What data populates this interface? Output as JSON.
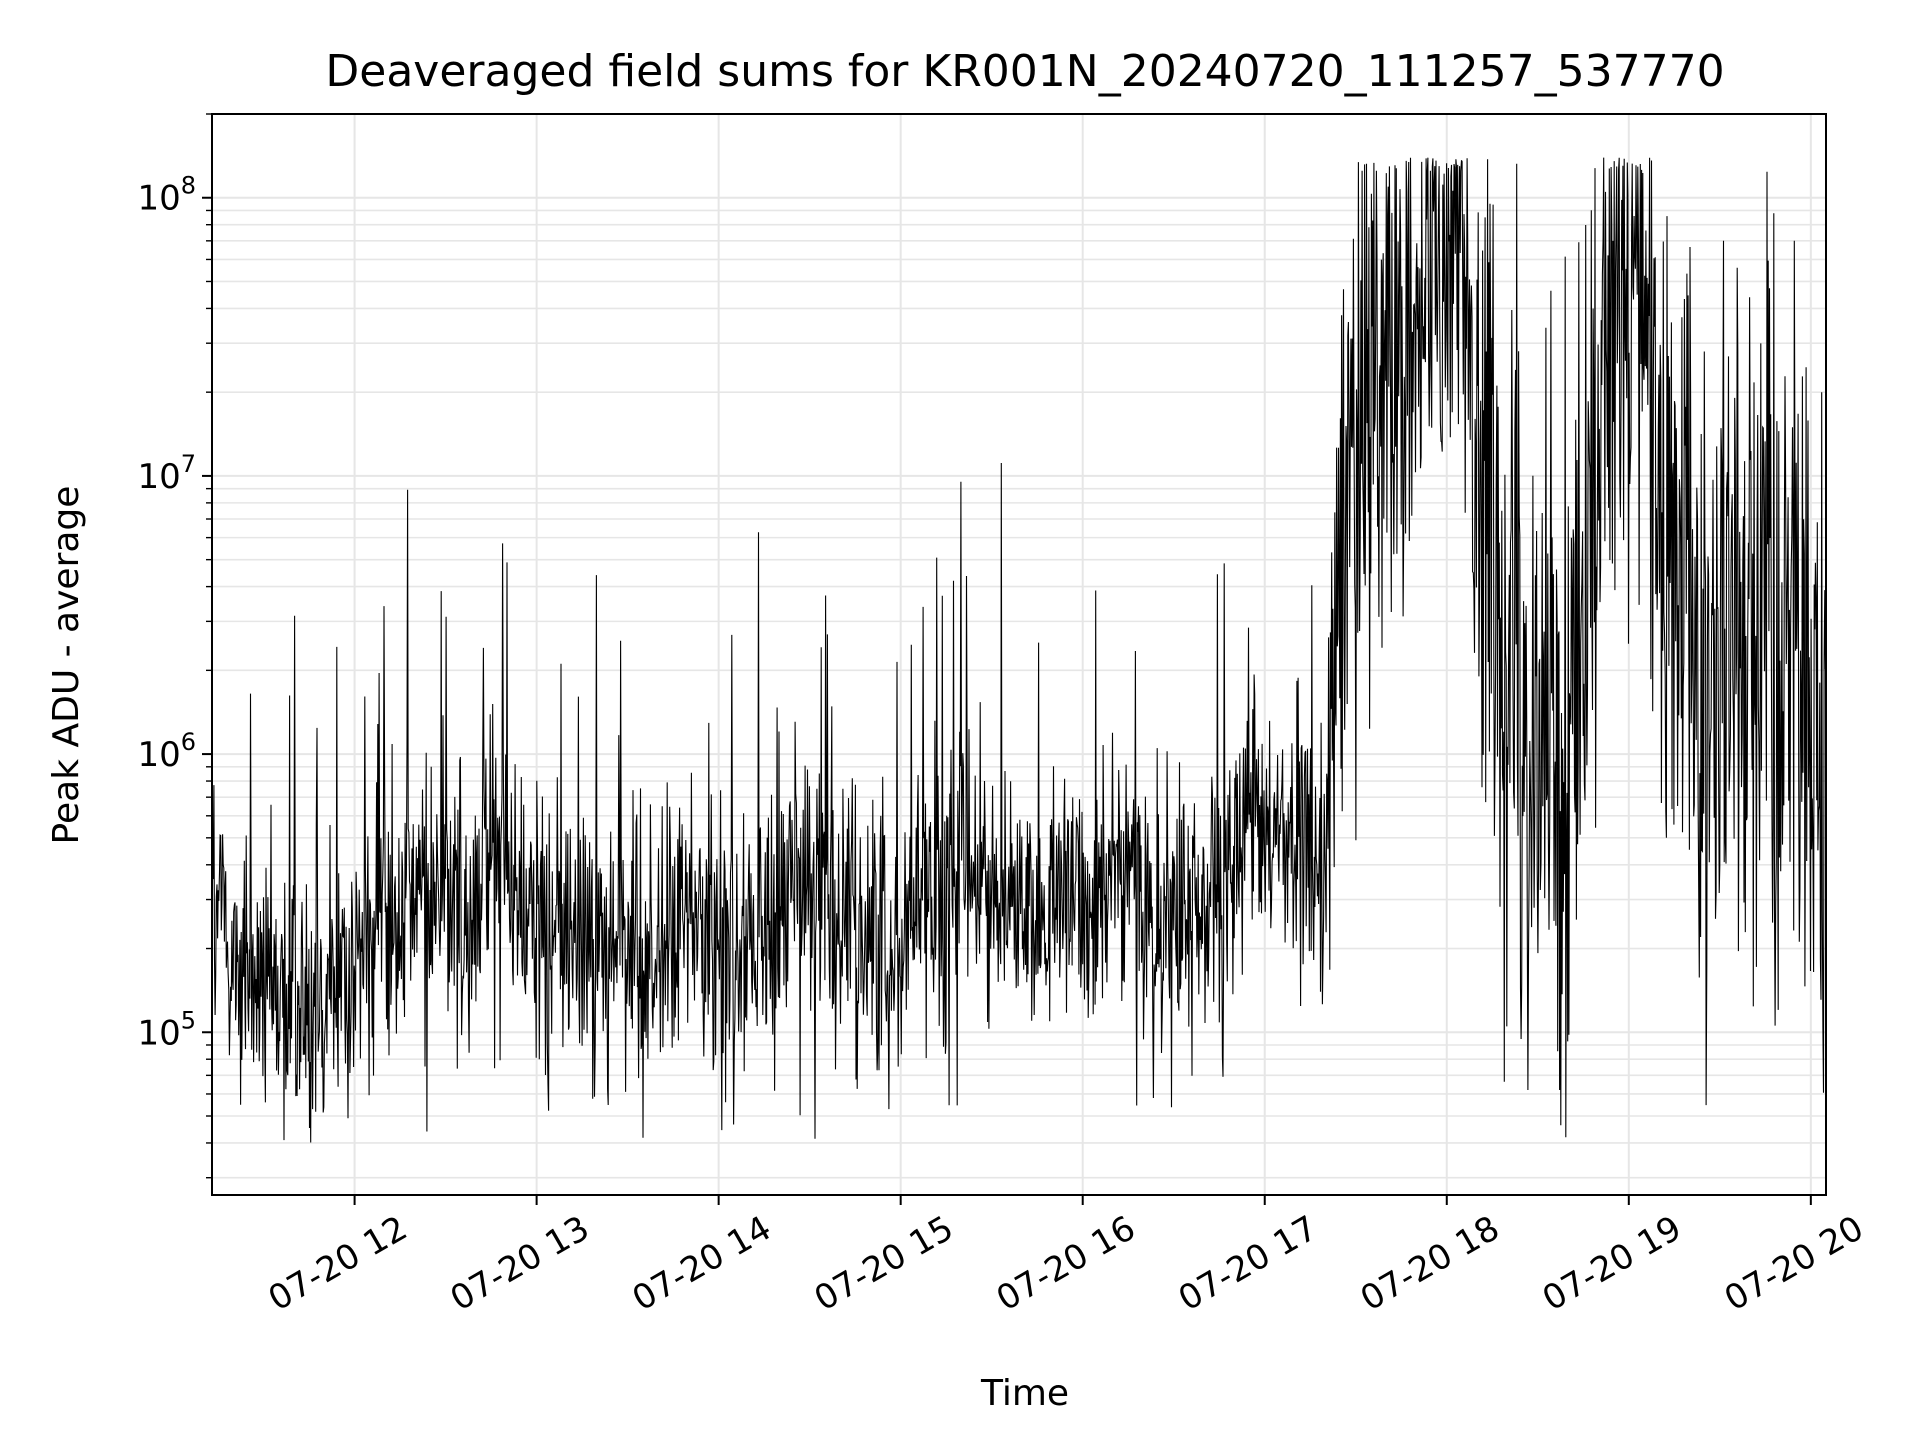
{
  "chart_data": {
    "type": "line",
    "title": "Deaveraged field sums for KR001N_20240720_111257_537770",
    "xlabel": "Time",
    "ylabel": "Peak ADU - average",
    "x_scale": "time",
    "y_scale": "log",
    "xlim": [
      "2024-07-20T11:13:00",
      "2024-07-20T20:05:00"
    ],
    "ylim": [
      26000,
      200000000
    ],
    "x_ticks": [
      "07-20 12",
      "07-20 13",
      "07-20 14",
      "07-20 15",
      "07-20 16",
      "07-20 17",
      "07-20 18",
      "07-20 19",
      "07-20 20"
    ],
    "y_ticks": [
      {
        "base": "10",
        "exp": "5",
        "value": 100000
      },
      {
        "base": "10",
        "exp": "6",
        "value": 1000000
      },
      {
        "base": "10",
        "exp": "7",
        "value": 10000000
      },
      {
        "base": "10",
        "exp": "8",
        "value": 100000000
      }
    ],
    "grid": true,
    "legend": "none",
    "line_color": "#000000",
    "grid_color": "#e6e6e6",
    "series": [
      {
        "x": [
          "2024-07-20T11:13",
          "2024-07-20T11:25",
          "2024-07-20T11:35",
          "2024-07-20T11:45",
          "2024-07-20T11:55",
          "2024-07-20T12:05",
          "2024-07-20T12:15",
          "2024-07-20T12:25",
          "2024-07-20T12:35",
          "2024-07-20T12:45",
          "2024-07-20T12:55",
          "2024-07-20T13:05",
          "2024-07-20T13:15",
          "2024-07-20T13:25",
          "2024-07-20T13:35",
          "2024-07-20T13:45",
          "2024-07-20T13:55",
          "2024-07-20T14:05",
          "2024-07-20T14:15",
          "2024-07-20T14:25",
          "2024-07-20T14:35",
          "2024-07-20T14:45",
          "2024-07-20T14:55",
          "2024-07-20T15:05",
          "2024-07-20T15:15",
          "2024-07-20T15:25",
          "2024-07-20T15:35",
          "2024-07-20T15:45",
          "2024-07-20T15:55",
          "2024-07-20T16:05",
          "2024-07-20T16:15",
          "2024-07-20T16:25",
          "2024-07-20T16:35",
          "2024-07-20T16:45",
          "2024-07-20T16:55",
          "2024-07-20T17:05",
          "2024-07-20T17:10",
          "2024-07-20T17:15",
          "2024-07-20T17:20",
          "2024-07-20T17:25",
          "2024-07-20T17:35",
          "2024-07-20T17:45",
          "2024-07-20T17:55",
          "2024-07-20T18:05",
          "2024-07-20T18:10",
          "2024-07-20T18:15",
          "2024-07-20T18:25",
          "2024-07-20T18:35",
          "2024-07-20T18:45",
          "2024-07-20T18:55",
          "2024-07-20T19:05",
          "2024-07-20T19:15",
          "2024-07-20T19:25",
          "2024-07-20T19:35",
          "2024-07-20T19:45",
          "2024-07-20T19:55",
          "2024-07-20T20:05"
        ],
        "y": [
          300000,
          150000,
          140000,
          130000,
          170000,
          200000,
          280000,
          350000,
          300000,
          450000,
          300000,
          250000,
          220000,
          200000,
          180000,
          230000,
          250000,
          180000,
          250000,
          350000,
          350000,
          250000,
          220000,
          300000,
          320000,
          350000,
          280000,
          250000,
          300000,
          350000,
          320000,
          280000,
          250000,
          350000,
          450000,
          550000,
          500000,
          400000,
          450000,
          4000000,
          15000000,
          35000000,
          60000000,
          50000000,
          15000000,
          4000000,
          1500000,
          800000,
          2000000,
          40000000,
          40000000,
          5000000,
          2000000,
          3000000,
          3000000,
          2000000,
          1000000
        ],
        "spread": [
          0.35,
          0.35,
          0.35,
          0.35,
          0.35,
          0.35,
          0.38,
          0.38,
          0.38,
          0.38,
          0.38,
          0.38,
          0.36,
          0.36,
          0.36,
          0.36,
          0.36,
          0.36,
          0.36,
          0.38,
          0.38,
          0.36,
          0.36,
          0.36,
          0.36,
          0.36,
          0.34,
          0.34,
          0.34,
          0.34,
          0.34,
          0.34,
          0.34,
          0.36,
          0.36,
          0.36,
          0.36,
          0.36,
          0.5,
          0.8,
          0.9,
          0.7,
          0.5,
          0.5,
          0.8,
          1.0,
          1.0,
          1.0,
          1.0,
          0.9,
          0.9,
          1.0,
          1.0,
          1.0,
          1.0,
          1.0,
          1.0
        ]
      }
    ]
  }
}
